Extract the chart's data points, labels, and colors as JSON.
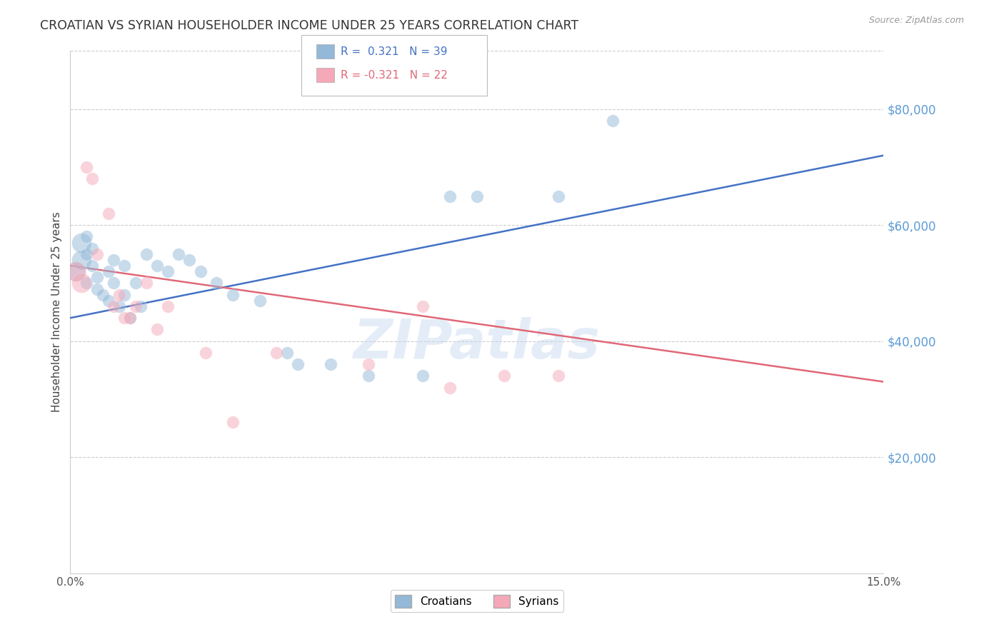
{
  "title": "CROATIAN VS SYRIAN HOUSEHOLDER INCOME UNDER 25 YEARS CORRELATION CHART",
  "source": "Source: ZipAtlas.com",
  "ylabel": "Householder Income Under 25 years",
  "ytick_labels": [
    "$20,000",
    "$40,000",
    "$60,000",
    "$80,000"
  ],
  "ytick_values": [
    20000,
    40000,
    60000,
    80000
  ],
  "xlim": [
    0.0,
    0.15
  ],
  "ylim": [
    0,
    90000
  ],
  "background_color": "#ffffff",
  "grid_color": "#cccccc",
  "title_color": "#333333",
  "source_color": "#999999",
  "ylabel_color": "#444444",
  "ytick_color": "#5b9bd5",
  "blue_color": "#93b8d8",
  "pink_color": "#f5a8b8",
  "blue_line_color": "#4472c4",
  "pink_line_color": "#e06878",
  "watermark": "ZIPatlas",
  "blue_line_y0": 44000,
  "blue_line_y1": 72000,
  "pink_line_y0": 53000,
  "pink_line_y1": 33000,
  "croatians_x": [
    0.001,
    0.002,
    0.002,
    0.003,
    0.003,
    0.003,
    0.004,
    0.004,
    0.005,
    0.005,
    0.006,
    0.007,
    0.007,
    0.008,
    0.008,
    0.009,
    0.01,
    0.01,
    0.011,
    0.012,
    0.013,
    0.014,
    0.016,
    0.018,
    0.02,
    0.022,
    0.024,
    0.027,
    0.03,
    0.035,
    0.04,
    0.042,
    0.048,
    0.055,
    0.065,
    0.07,
    0.075,
    0.09,
    0.1
  ],
  "croatians_y": [
    52000,
    57000,
    54000,
    50000,
    55000,
    58000,
    53000,
    56000,
    49000,
    51000,
    48000,
    47000,
    52000,
    50000,
    54000,
    46000,
    48000,
    53000,
    44000,
    50000,
    46000,
    55000,
    53000,
    52000,
    55000,
    54000,
    52000,
    50000,
    48000,
    47000,
    38000,
    36000,
    36000,
    34000,
    34000,
    65000,
    65000,
    65000,
    78000
  ],
  "syrians_x": [
    0.001,
    0.002,
    0.003,
    0.004,
    0.005,
    0.007,
    0.008,
    0.009,
    0.01,
    0.011,
    0.012,
    0.014,
    0.016,
    0.018,
    0.025,
    0.03,
    0.038,
    0.055,
    0.065,
    0.07,
    0.08,
    0.09
  ],
  "syrians_y": [
    52000,
    50000,
    70000,
    68000,
    55000,
    62000,
    46000,
    48000,
    44000,
    44000,
    46000,
    50000,
    42000,
    46000,
    38000,
    26000,
    38000,
    36000,
    46000,
    32000,
    34000,
    34000
  ],
  "marker_size": 160,
  "marker_size_large": 400,
  "line_width": 1.8,
  "alpha_scatter": 0.5
}
